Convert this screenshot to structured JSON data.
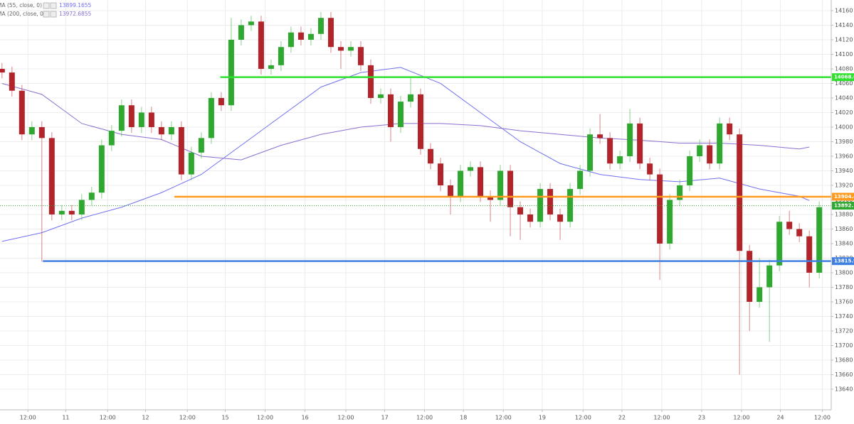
{
  "chart_data": {
    "type": "candlestick",
    "x": [
      0,
      1,
      2,
      3,
      4,
      5,
      6,
      7,
      8,
      9,
      10,
      11,
      12,
      13,
      14,
      15,
      16,
      17,
      18,
      19,
      20,
      21,
      22,
      23,
      24,
      25,
      26,
      27,
      28,
      29,
      30,
      31,
      32,
      33,
      34,
      35,
      36,
      37,
      38,
      39,
      40,
      41,
      42,
      43,
      44,
      45,
      46,
      47,
      48,
      49,
      50,
      51,
      52,
      53,
      54,
      55,
      56,
      57,
      58,
      59,
      60,
      61,
      62,
      63,
      64,
      65,
      66,
      67,
      68,
      69,
      70,
      71,
      72,
      73,
      74,
      75,
      76,
      77,
      78,
      79,
      80,
      81,
      82
    ],
    "open": [
      14080,
      14075,
      14050,
      13990,
      14000,
      13985,
      13880,
      13885,
      13880,
      13900,
      13910,
      13975,
      13995,
      14030,
      14000,
      14020,
      14000,
      13990,
      14000,
      13935,
      13965,
      13985,
      14040,
      14030,
      14120,
      14140,
      14145,
      14080,
      14085,
      14110,
      14130,
      14120,
      14128,
      14150,
      14110,
      14105,
      14110,
      14085,
      14040,
      14045,
      14000,
      14035,
      14045,
      13970,
      13950,
      13920,
      13905,
      13940,
      13945,
      13905,
      13900,
      13940,
      13890,
      13880,
      13870,
      13915,
      13880,
      13870,
      13915,
      13940,
      13990,
      13985,
      13950,
      13960,
      14005,
      13950,
      13935,
      13840,
      13900,
      13920,
      13960,
      13975,
      13950,
      14005,
      13990,
      13830,
      13760,
      13780,
      13810,
      13870,
      13860,
      13850,
      13800
    ],
    "high": [
      14088,
      14083,
      14058,
      14008,
      14008,
      13993,
      13893,
      13893,
      13908,
      13918,
      13983,
      14003,
      14038,
      14038,
      14028,
      14028,
      14008,
      14008,
      14008,
      13973,
      13993,
      14048,
      14048,
      14150,
      14148,
      14153,
      14153,
      14093,
      14118,
      14138,
      14138,
      14136,
      14158,
      14158,
      14118,
      14118,
      14118,
      14093,
      14053,
      14053,
      14043,
      14068,
      14053,
      13978,
      13958,
      13928,
      13948,
      13953,
      13953,
      13913,
      13948,
      13948,
      13898,
      13888,
      13923,
      13923,
      13888,
      13923,
      13948,
      13998,
      14018,
      13993,
      13968,
      14025,
      14013,
      13958,
      13943,
      13908,
      13928,
      13968,
      13983,
      13983,
      14013,
      14013,
      13998,
      13838,
      13820,
      13818,
      13878,
      13885,
      13868,
      13858,
      13898
    ],
    "low": [
      14067,
      14042,
      13982,
      13982,
      13815,
      13872,
      13872,
      13872,
      13872,
      13892,
      13902,
      13967,
      13987,
      13992,
      13992,
      13992,
      13982,
      13982,
      13927,
      13927,
      13957,
      13977,
      14022,
      14022,
      14112,
      14132,
      14072,
      14072,
      14077,
      14102,
      14112,
      14112,
      14120,
      14102,
      14080,
      14097,
      14077,
      14032,
      14032,
      13980,
      13992,
      14027,
      13962,
      13942,
      13912,
      13880,
      13897,
      13932,
      13897,
      13870,
      13892,
      13850,
      13845,
      13862,
      13862,
      13872,
      13845,
      13862,
      13907,
      13932,
      13977,
      13942,
      13942,
      13952,
      13942,
      13927,
      13790,
      13832,
      13892,
      13912,
      13952,
      13942,
      13942,
      13982,
      13660,
      13720,
      13752,
      13705,
      13802,
      13852,
      13842,
      13780,
      13792
    ],
    "close": [
      14075,
      14050,
      13990,
      14000,
      13985,
      13880,
      13885,
      13880,
      13900,
      13910,
      13975,
      13995,
      14030,
      14000,
      14020,
      14000,
      13990,
      14000,
      13935,
      13965,
      13985,
      14040,
      14030,
      14120,
      14140,
      14145,
      14080,
      14085,
      14110,
      14130,
      14120,
      14128,
      14150,
      14110,
      14105,
      14110,
      14085,
      14040,
      14045,
      14000,
      14035,
      14045,
      13970,
      13950,
      13920,
      13905,
      13940,
      13945,
      13905,
      13900,
      13940,
      13890,
      13880,
      13870,
      13915,
      13880,
      13870,
      13915,
      13940,
      13990,
      13985,
      13950,
      13960,
      14005,
      13950,
      13935,
      13840,
      13900,
      13920,
      13960,
      13975,
      13950,
      14005,
      13990,
      13830,
      13760,
      13780,
      13810,
      13870,
      13860,
      13850,
      13800,
      13890
    ],
    "up_color": "#2fa82f",
    "down_color": "#b3232a",
    "lines": [
      {
        "name": "MA (55, close, 0)",
        "color": "#7070f0",
        "last_value": 13899.1655,
        "x": [
          0,
          4,
          8,
          12,
          16,
          20,
          24,
          28,
          32,
          36,
          40,
          44,
          48,
          52,
          56,
          60,
          64,
          68,
          72,
          76,
          80,
          81
        ],
        "values": [
          13843,
          13855,
          13875,
          13890,
          13910,
          13935,
          13975,
          14015,
          14055,
          14075,
          14082,
          14060,
          14020,
          13980,
          13950,
          13935,
          13928,
          13925,
          13930,
          13915,
          13905,
          13899.2
        ]
      },
      {
        "name": "MA (200, close, 0)",
        "color": "#8a6fd0",
        "last_value": 13972.6855,
        "x": [
          0,
          4,
          8,
          12,
          16,
          20,
          24,
          28,
          32,
          36,
          40,
          44,
          48,
          52,
          56,
          60,
          64,
          68,
          72,
          76,
          80,
          81
        ],
        "values": [
          14060,
          14045,
          14005,
          13990,
          13983,
          13960,
          13955,
          13975,
          13990,
          14000,
          14005,
          14005,
          14002,
          13995,
          13990,
          13985,
          13982,
          13978,
          13978,
          13975,
          13970,
          13972.7
        ]
      }
    ],
    "levels": [
      {
        "value": 14068.6,
        "color": "#2fe02f",
        "from_x": 21.9
      },
      {
        "value": 13904.4,
        "color": "#ff9a1f",
        "from_x": 17.3
      },
      {
        "value": 13815.9,
        "color": "#3f7fe0",
        "from_x": 4.1
      }
    ],
    "last_price": {
      "value": 13892.1,
      "color": "#2fa82f"
    },
    "xlim": [
      -0.2,
      83.2
    ],
    "xticks": [
      {
        "value": 2.6,
        "label": "12:00"
      },
      {
        "value": 6.4,
        "label": "11"
      },
      {
        "value": 10.6,
        "label": "12:00"
      },
      {
        "value": 14.4,
        "label": "12"
      },
      {
        "value": 18.6,
        "label": "12:00"
      },
      {
        "value": 22.4,
        "label": "15"
      },
      {
        "value": 26.4,
        "label": "12:00"
      },
      {
        "value": 30.4,
        "label": "16"
      },
      {
        "value": 34.5,
        "label": "12:00"
      },
      {
        "value": 38.4,
        "label": "17"
      },
      {
        "value": 42.4,
        "label": "12:00"
      },
      {
        "value": 46.3,
        "label": "18"
      },
      {
        "value": 50.3,
        "label": "12:00"
      },
      {
        "value": 54.2,
        "label": "19"
      },
      {
        "value": 58.3,
        "label": "12:00"
      },
      {
        "value": 62.2,
        "label": "22"
      },
      {
        "value": 66.2,
        "label": "12:00"
      },
      {
        "value": 70.2,
        "label": "23"
      },
      {
        "value": 74.2,
        "label": "12:00"
      },
      {
        "value": 78.1,
        "label": "24"
      },
      {
        "value": 82.3,
        "label": "12:00"
      }
    ],
    "ylim": [
      13611.7,
      14174.6
    ],
    "yticks": [
      13640,
      13660,
      13680,
      13700,
      13720,
      13740,
      13760,
      13780,
      13800,
      13820,
      13840,
      13860,
      13880,
      13900,
      13920,
      13940,
      13960,
      13980,
      14000,
      14020,
      14040,
      14060,
      14080,
      14100,
      14120,
      14140,
      14160
    ],
    "grid": true
  }
}
